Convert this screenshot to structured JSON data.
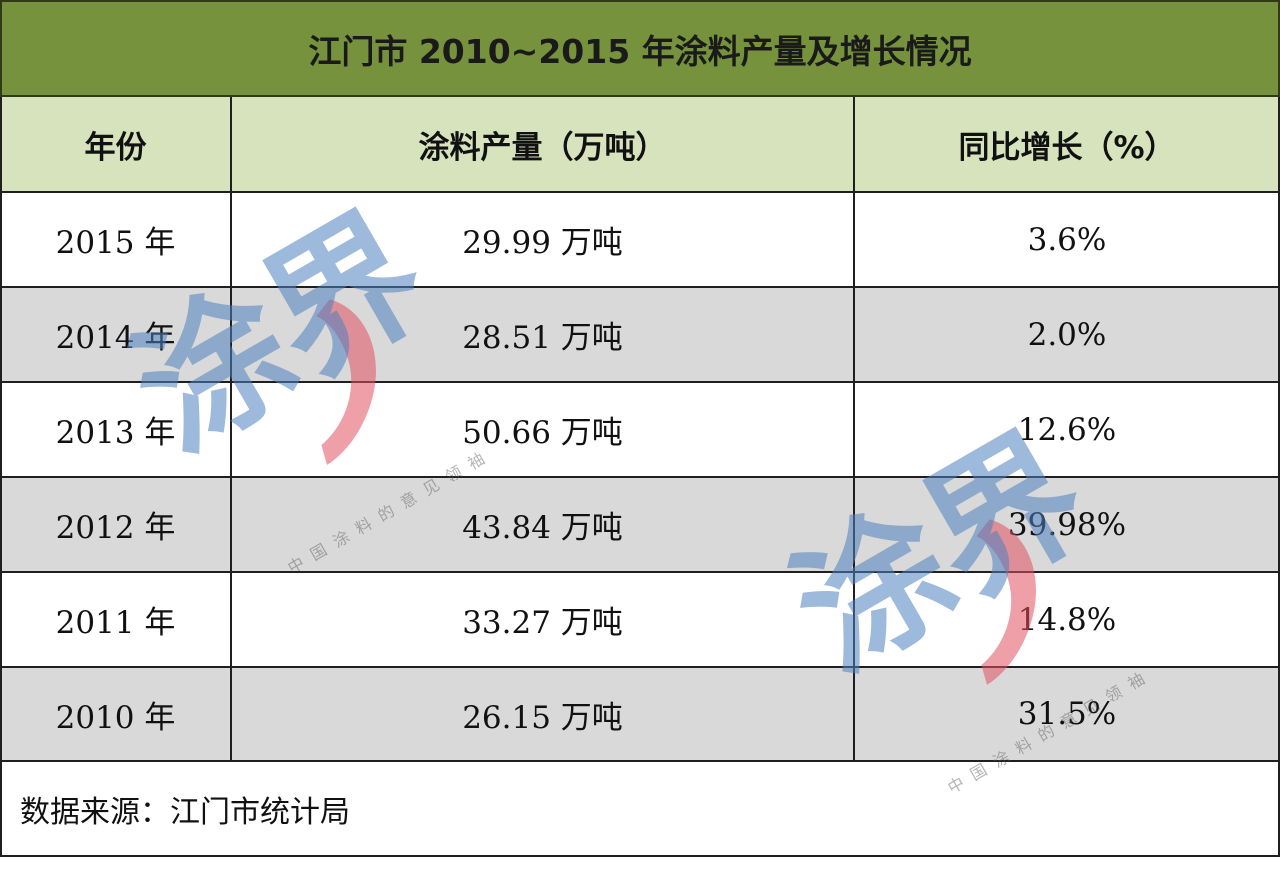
{
  "title": "江门市 2010~2015 年涂料产量及增长情况",
  "headers": {
    "year": "年份",
    "output": "涂料产量（万吨）",
    "growth": "同比增长（%）"
  },
  "rows": [
    {
      "year": "2015 年",
      "output": "29.99 万吨",
      "growth": "3.6%"
    },
    {
      "year": "2014 年",
      "output": "28.51 万吨",
      "growth": "2.0%"
    },
    {
      "year": "2013 年",
      "output": "50.66 万吨",
      "growth": "12.6%"
    },
    {
      "year": "2012 年",
      "output": "43.84 万吨",
      "growth": "39.98%"
    },
    {
      "year": "2011 年",
      "output": "33.27 万吨",
      "growth": "14.8%"
    },
    {
      "year": "2010 年",
      "output": "26.15 万吨",
      "growth": "31.5%"
    }
  ],
  "footer": "数据来源：江门市统计局",
  "watermark": {
    "big_text": "涂界",
    "small_text": "中国涂料的意见领袖"
  },
  "colors": {
    "title_bg": "#76923c",
    "header_bg": "#d7e3bc",
    "alt_row_bg": "#d9d9d9",
    "watermark_blue": "#4d80bf",
    "watermark_red": "#e05060"
  }
}
